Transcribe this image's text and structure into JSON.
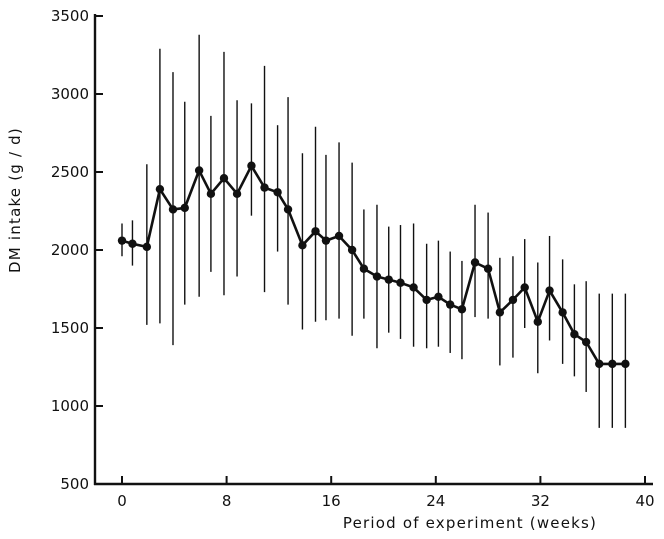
{
  "chart_data": {
    "type": "line",
    "title": "",
    "xlabel": "Period of experiment  (weeks)",
    "ylabel": "DM intake  (g / d)",
    "xlim": [
      0,
      40
    ],
    "ylim": [
      500,
      3500
    ],
    "x_ticks": [
      0,
      8,
      16,
      24,
      32,
      40
    ],
    "x_tick_labels": [
      "0",
      "8",
      "16",
      "24",
      "32",
      "40"
    ],
    "y_ticks": [
      500,
      1000,
      1500,
      2000,
      2500,
      3000,
      3500
    ],
    "y_tick_labels": [
      "500",
      "1000",
      "1500",
      "2000",
      "2500",
      "3000",
      "3500"
    ],
    "grid": false,
    "series": [
      {
        "x": [
          0,
          0.8,
          1.9,
          2.9,
          3.9,
          4.8,
          5.9,
          6.8,
          7.8,
          8.8,
          9.9,
          10.9,
          11.9,
          12.7,
          13.8,
          14.8,
          15.6,
          16.6,
          17.6,
          18.5,
          19.5,
          20.4,
          21.3,
          22.3,
          23.3,
          24.2,
          25.1,
          26.0,
          27.0,
          28.0,
          28.9,
          29.9,
          30.8,
          31.8,
          32.7,
          33.7,
          34.6,
          35.5,
          36.5,
          37.5,
          38.5
        ],
        "values": [
          2060,
          2040,
          2020,
          2390,
          2260,
          2270,
          2510,
          2360,
          2460,
          2360,
          2540,
          2400,
          2370,
          2260,
          2030,
          2120,
          2060,
          2090,
          2000,
          1880,
          1830,
          1810,
          1790,
          1760,
          1680,
          1700,
          1650,
          1620,
          1920,
          1880,
          1600,
          1680,
          1760,
          1540,
          1740,
          1600,
          1460,
          1410,
          1270,
          1270,
          1270
        ],
        "err_low": [
          1960,
          1900,
          1520,
          1530,
          1390,
          1650,
          1700,
          1860,
          1710,
          1830,
          2220,
          1730,
          1990,
          1650,
          1490,
          1540,
          1550,
          1560,
          1450,
          1560,
          1370,
          1470,
          1430,
          1380,
          1370,
          1380,
          1340,
          1300,
          1570,
          1560,
          1260,
          1310,
          1500,
          1210,
          1420,
          1270,
          1190,
          1090,
          860,
          860,
          860
        ],
        "err_high": [
          2170,
          2190,
          2550,
          3290,
          3140,
          2950,
          3380,
          2860,
          3270,
          2960,
          2940,
          3180,
          2800,
          2980,
          2620,
          2790,
          2610,
          2690,
          2560,
          2260,
          2290,
          2150,
          2160,
          2170,
          2040,
          2060,
          1990,
          1930,
          2290,
          2240,
          1950,
          1960,
          2070,
          1920,
          2090,
          1940,
          1780,
          1800,
          1720,
          1720,
          1720
        ]
      }
    ]
  }
}
